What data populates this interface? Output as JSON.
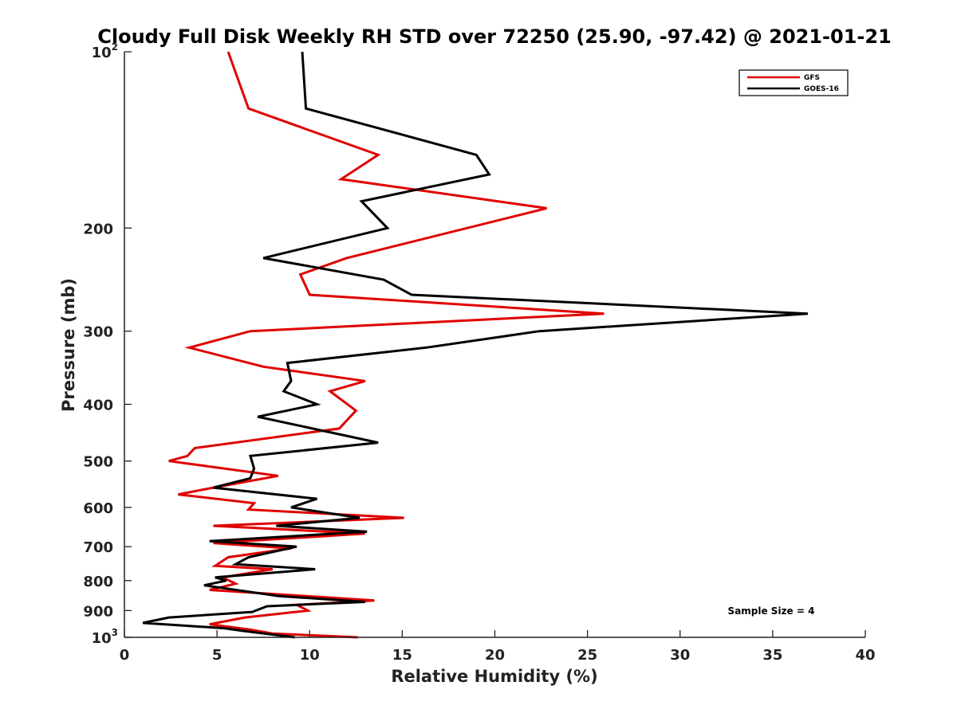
{
  "chart_data": {
    "type": "line",
    "title": "Cloudy Full Disk Weekly RH STD over 72250 (25.90, -97.42) @ 2021-01-21",
    "xlabel": "Relative Humidity (%)",
    "ylabel": "Pressure (mb)",
    "xlim": [
      0,
      40
    ],
    "ylim": [
      100,
      1000
    ],
    "y_scale": "log",
    "y_reversed": true,
    "grid": false,
    "x_ticks": [
      0,
      5,
      10,
      15,
      20,
      25,
      30,
      35,
      40
    ],
    "x_tick_labels": [
      "0",
      "5",
      "10",
      "15",
      "20",
      "25",
      "30",
      "35",
      "40"
    ],
    "y_ticks": [
      100,
      200,
      300,
      400,
      500,
      600,
      700,
      800,
      900,
      1000
    ],
    "y_tick_labels": [
      {
        "base": "10",
        "sup": "2"
      },
      {
        "base": "200",
        "sup": ""
      },
      {
        "base": "300",
        "sup": ""
      },
      {
        "base": "400",
        "sup": ""
      },
      {
        "base": "500",
        "sup": ""
      },
      {
        "base": "600",
        "sup": ""
      },
      {
        "base": "700",
        "sup": ""
      },
      {
        "base": "800",
        "sup": ""
      },
      {
        "base": "900",
        "sup": ""
      },
      {
        "base": "10",
        "sup": "3"
      }
    ],
    "legend_position": "top-right",
    "annotation": "Sample Size = 4",
    "series": [
      {
        "name": "GFS",
        "color": "#e00000",
        "points": [
          [
            5.6,
            100
          ],
          [
            6.7,
            125
          ],
          [
            13.7,
            150
          ],
          [
            11.7,
            165
          ],
          [
            22.8,
            185
          ],
          [
            12.0,
            225
          ],
          [
            9.5,
            240
          ],
          [
            10.0,
            260
          ],
          [
            25.9,
            280
          ],
          [
            6.8,
            300
          ],
          [
            3.5,
            320
          ],
          [
            7.5,
            345
          ],
          [
            13.0,
            365
          ],
          [
            11.1,
            380
          ],
          [
            12.5,
            410
          ],
          [
            11.6,
            440
          ],
          [
            3.8,
            475
          ],
          [
            3.4,
            490
          ],
          [
            2.4,
            500
          ],
          [
            8.3,
            530
          ],
          [
            4.8,
            555
          ],
          [
            2.9,
            570
          ],
          [
            7.0,
            590
          ],
          [
            6.7,
            605
          ],
          [
            15.1,
            625
          ],
          [
            4.8,
            645
          ],
          [
            13.0,
            665
          ],
          [
            4.8,
            690
          ],
          [
            9.0,
            705
          ],
          [
            5.6,
            730
          ],
          [
            4.9,
            755
          ],
          [
            8.0,
            765
          ],
          [
            5.3,
            790
          ],
          [
            6.0,
            810
          ],
          [
            4.6,
            830
          ],
          [
            13.5,
            865
          ],
          [
            9.3,
            880
          ],
          [
            9.9,
            900
          ],
          [
            6.5,
            925
          ],
          [
            4.6,
            950
          ],
          [
            6.8,
            970
          ],
          [
            8.0,
            985
          ],
          [
            12.6,
            1000
          ]
        ]
      },
      {
        "name": "GOES-16",
        "color": "#000000",
        "points": [
          [
            9.6,
            100
          ],
          [
            9.8,
            125
          ],
          [
            19.0,
            150
          ],
          [
            19.7,
            162
          ],
          [
            12.8,
            180
          ],
          [
            14.2,
            200
          ],
          [
            7.5,
            225
          ],
          [
            14.0,
            245
          ],
          [
            15.5,
            260
          ],
          [
            36.9,
            280
          ],
          [
            22.4,
            300
          ],
          [
            16.3,
            320
          ],
          [
            8.8,
            340
          ],
          [
            9.0,
            365
          ],
          [
            8.6,
            380
          ],
          [
            10.4,
            400
          ],
          [
            7.2,
            420
          ],
          [
            13.7,
            465
          ],
          [
            6.8,
            490
          ],
          [
            7.0,
            515
          ],
          [
            6.8,
            535
          ],
          [
            4.8,
            555
          ],
          [
            10.4,
            580
          ],
          [
            9.0,
            600
          ],
          [
            12.7,
            625
          ],
          [
            8.2,
            645
          ],
          [
            13.1,
            660
          ],
          [
            4.6,
            685
          ],
          [
            9.3,
            700
          ],
          [
            6.7,
            730
          ],
          [
            6.0,
            750
          ],
          [
            10.3,
            765
          ],
          [
            4.9,
            790
          ],
          [
            5.5,
            800
          ],
          [
            4.3,
            815
          ],
          [
            8.3,
            850
          ],
          [
            13.0,
            870
          ],
          [
            7.7,
            885
          ],
          [
            6.9,
            905
          ],
          [
            2.4,
            925
          ],
          [
            1.0,
            945
          ],
          [
            5.4,
            965
          ],
          [
            6.4,
            975
          ],
          [
            9.2,
            1000
          ]
        ]
      }
    ]
  }
}
